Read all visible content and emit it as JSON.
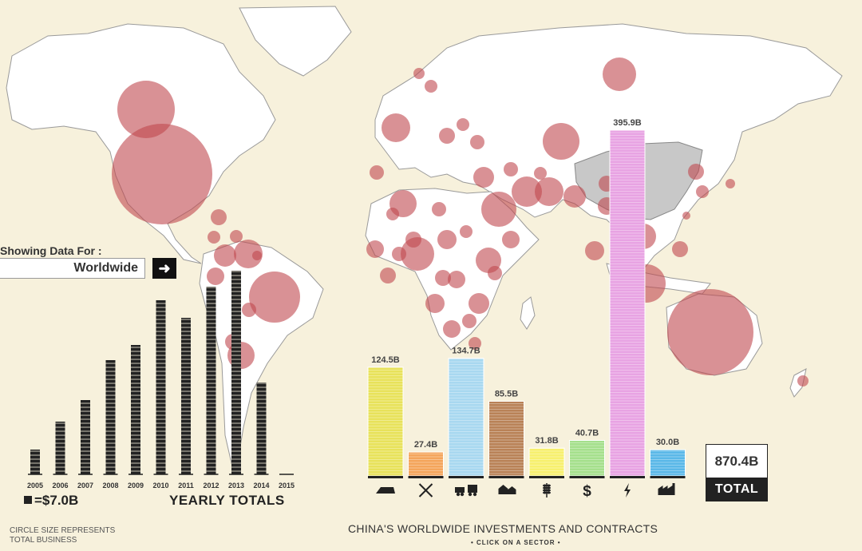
{
  "selector": {
    "label": "Showing Data For :",
    "value": "Worldwide",
    "button_glyph": "➜"
  },
  "legend": {
    "unit_square": "=$7.0B",
    "yearly_totals": "YEARLY TOTALS",
    "circle_note_line1": "CIRCLE SIZE REPRESENTS",
    "circle_note_line2": "TOTAL BUSINESS"
  },
  "title": {
    "main": "CHINA'S WORLDWIDE INVESTMENTS AND CONTRACTS",
    "sub": "• CLICK ON A SECTOR •"
  },
  "total": {
    "value": "870.4B",
    "label": "TOTAL"
  },
  "colors": {
    "background": "#f7f1dc",
    "land": "#ffffff",
    "border": "#9a9a9a",
    "bubble": "#c0474f",
    "china": "#c8c8c8",
    "year_bar": "#222222"
  },
  "chart_data": [
    {
      "type": "bar",
      "name": "yearly_totals",
      "categories": [
        "2005",
        "2006",
        "2007",
        "2008",
        "2009",
        "2010",
        "2011",
        "2012",
        "2013",
        "2014",
        "2015"
      ],
      "values": [
        31,
        66,
        93,
        143,
        162,
        218,
        196,
        235,
        255,
        115,
        0
      ],
      "unit_per_square": 7.0
    },
    {
      "type": "bar",
      "name": "sectors",
      "sectors": [
        {
          "label": "124.5B",
          "value": 124.5,
          "color": "#e8e25a",
          "icon": "metal-ingot-icon"
        },
        {
          "label": "27.4B",
          "value": 27.4,
          "color": "#f4a55b",
          "icon": "mining-icon"
        },
        {
          "label": "134.7B",
          "value": 134.7,
          "color": "#a8d8f0",
          "icon": "transport-icon"
        },
        {
          "label": "85.5B",
          "value": 85.5,
          "color": "#b98257",
          "icon": "real-estate-icon"
        },
        {
          "label": "31.8B",
          "value": 31.8,
          "color": "#f7f06e",
          "icon": "agriculture-icon"
        },
        {
          "label": "40.7B",
          "value": 40.7,
          "color": "#a5e08c",
          "icon": "finance-icon"
        },
        {
          "label": "395.9B",
          "value": 395.9,
          "color": "#e8a3e3",
          "icon": "energy-icon"
        },
        {
          "label": "30.0B",
          "value": 30.0,
          "color": "#5ab8e8",
          "icon": "industry-icon"
        }
      ]
    }
  ],
  "map_bubbles": [
    {
      "region": "Canada",
      "r": 36
    },
    {
      "region": "United States",
      "r": 63
    },
    {
      "region": "Russia",
      "r": 21
    },
    {
      "region": "Australia",
      "r": 54
    },
    {
      "region": "Brazil",
      "r": 32
    },
    {
      "region": "Indonesia",
      "r": 24
    },
    {
      "region": "Kazakhstan",
      "r": 23
    },
    {
      "region": "Iran",
      "r": 19
    },
    {
      "region": "Nigeria",
      "r": 21
    },
    {
      "region": "Venezuela",
      "r": 18
    }
  ]
}
